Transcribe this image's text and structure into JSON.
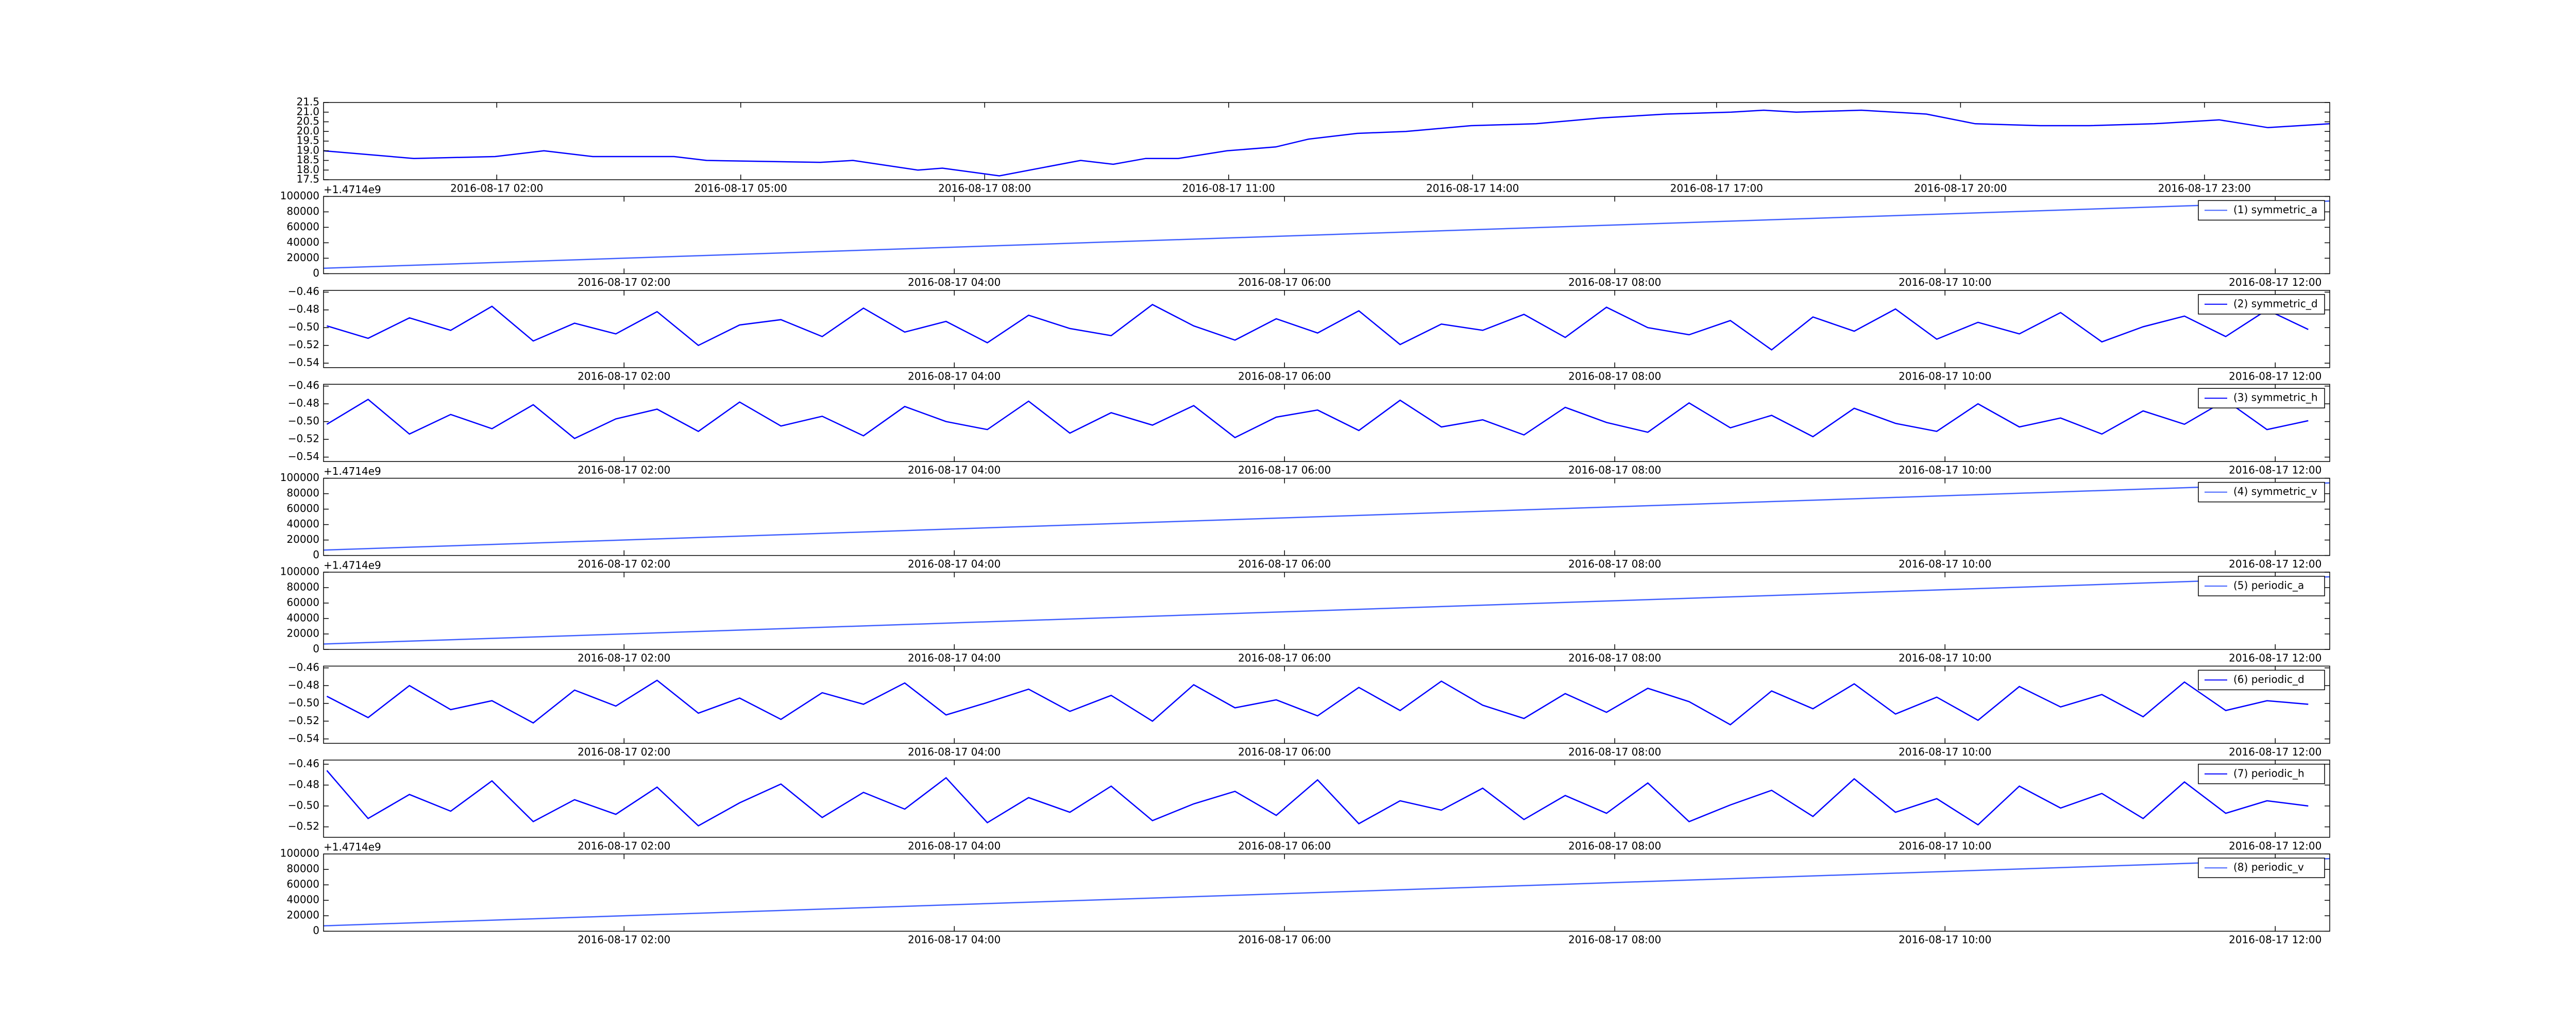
{
  "chart_data": [
    {
      "type": "line",
      "xlim": [
        -0.13,
        24.54
      ],
      "ylim": [
        17.5,
        21.5
      ],
      "xticks": [
        {
          "value": 2,
          "label": "2016-08-17 02:00"
        },
        {
          "value": 5,
          "label": "2016-08-17 05:00"
        },
        {
          "value": 8,
          "label": "2016-08-17 08:00"
        },
        {
          "value": 11,
          "label": "2016-08-17 11:00"
        },
        {
          "value": 14,
          "label": "2016-08-17 14:00"
        },
        {
          "value": 17,
          "label": "2016-08-17 17:00"
        },
        {
          "value": 20,
          "label": "2016-08-17 20:00"
        },
        {
          "value": 23,
          "label": "2016-08-17 23:00"
        }
      ],
      "yticks": [
        17.5,
        {
          "value": 18,
          "label": "18.0"
        },
        18.5,
        {
          "value": 19,
          "label": "19.0"
        },
        19.5,
        {
          "value": 20,
          "label": "20.0"
        },
        20.5,
        {
          "value": 21,
          "label": "21.0"
        },
        21.5
      ],
      "x": [
        -0.13,
        0.98,
        1.98,
        2.58,
        3.18,
        4.18,
        4.58,
        5.98,
        6.38,
        7.18,
        7.48,
        8.18,
        9.18,
        9.58,
        9.98,
        10.38,
        10.98,
        11.58,
        11.98,
        12.58,
        13.18,
        13.98,
        14.78,
        15.58,
        16.38,
        17.18,
        17.58,
        17.98,
        18.78,
        19.58,
        20.18,
        20.98,
        21.58,
        22.38,
        23.18,
        23.78,
        24.54
      ],
      "series": [
        {
          "color": "#0000ff",
          "values": [
            19.0,
            18.6,
            18.7,
            19.0,
            18.7,
            18.7,
            18.5,
            18.4,
            18.5,
            18.0,
            18.1,
            17.7,
            18.5,
            18.3,
            18.6,
            18.6,
            19.0,
            19.2,
            19.6,
            19.9,
            20.0,
            20.3,
            20.4,
            20.7,
            20.9,
            21.0,
            21.1,
            21.0,
            21.1,
            20.9,
            20.4,
            20.3,
            20.3,
            20.4,
            20.6,
            20.2,
            20.4
          ]
        }
      ]
    },
    {
      "type": "line",
      "xlim": [
        0.18,
        12.33
      ],
      "ylim": [
        0,
        100000
      ],
      "offset_text": "+1.4714e9",
      "legend": "upper right",
      "xticks": [
        {
          "value": 2,
          "label": "2016-08-17 02:00"
        },
        {
          "value": 4,
          "label": "2016-08-17 04:00"
        },
        {
          "value": 6,
          "label": "2016-08-17 06:00"
        },
        {
          "value": 8,
          "label": "2016-08-17 08:00"
        },
        {
          "value": 10,
          "label": "2016-08-17 10:00"
        },
        {
          "value": 12,
          "label": "2016-08-17 12:00"
        }
      ],
      "yticks": [
        0,
        20000,
        40000,
        60000,
        80000,
        100000
      ],
      "x": [
        0.18,
        12.33
      ],
      "series": [
        {
          "name": "(1) symmetric_a",
          "color": "#4060ff",
          "values": [
            7000,
            94000
          ]
        }
      ]
    },
    {
      "type": "line",
      "xlim": [
        0.18,
        12.33
      ],
      "ylim": [
        -0.545,
        -0.458
      ],
      "legend": "upper right",
      "xticks": [
        {
          "value": 2,
          "label": "2016-08-17 02:00"
        },
        {
          "value": 4,
          "label": "2016-08-17 04:00"
        },
        {
          "value": 6,
          "label": "2016-08-17 06:00"
        },
        {
          "value": 8,
          "label": "2016-08-17 08:00"
        },
        {
          "value": 10,
          "label": "2016-08-17 10:00"
        },
        {
          "value": 12,
          "label": "2016-08-17 12:00"
        }
      ],
      "yticks": [
        {
          "value": -0.54,
          "label": "−0.54"
        },
        {
          "value": -0.52,
          "label": "−0.52"
        },
        {
          "value": -0.5,
          "label": "−0.50"
        },
        {
          "value": -0.48,
          "label": "−0.48"
        },
        {
          "value": -0.46,
          "label": "−0.46"
        }
      ],
      "x": [
        0.2,
        0.45,
        0.7,
        0.95,
        1.2,
        1.45,
        1.7,
        1.95,
        2.2,
        2.45,
        2.7,
        2.95,
        3.2,
        3.45,
        3.7,
        3.95,
        4.2,
        4.45,
        4.7,
        4.95,
        5.2,
        5.45,
        5.7,
        5.95,
        6.2,
        6.45,
        6.7,
        6.95,
        7.2,
        7.45,
        7.7,
        7.95,
        8.2,
        8.45,
        8.7,
        8.95,
        9.2,
        9.45,
        9.7,
        9.95,
        10.2,
        10.45,
        10.7,
        10.95,
        11.2,
        11.45,
        11.7,
        11.95,
        12.2
      ],
      "series": [
        {
          "name": "(2) symmetric_d",
          "color": "#0000ff",
          "values": [
            -0.498,
            -0.512,
            -0.489,
            -0.503,
            -0.476,
            -0.515,
            -0.495,
            -0.507,
            -0.482,
            -0.52,
            -0.497,
            -0.491,
            -0.51,
            -0.478,
            -0.505,
            -0.493,
            -0.517,
            -0.486,
            -0.501,
            -0.509,
            -0.474,
            -0.498,
            -0.514,
            -0.49,
            -0.506,
            -0.481,
            -0.519,
            -0.496,
            -0.503,
            -0.485,
            -0.511,
            -0.477,
            -0.5,
            -0.508,
            -0.492,
            -0.525,
            -0.488,
            -0.504,
            -0.479,
            -0.513,
            -0.494,
            -0.507,
            -0.483,
            -0.516,
            -0.499,
            -0.487,
            -0.51,
            -0.48,
            -0.502
          ]
        }
      ]
    },
    {
      "type": "line",
      "xlim": [
        0.18,
        12.33
      ],
      "ylim": [
        -0.545,
        -0.458
      ],
      "legend": "upper right",
      "xticks": [
        {
          "value": 2,
          "label": "2016-08-17 02:00"
        },
        {
          "value": 4,
          "label": "2016-08-17 04:00"
        },
        {
          "value": 6,
          "label": "2016-08-17 06:00"
        },
        {
          "value": 8,
          "label": "2016-08-17 08:00"
        },
        {
          "value": 10,
          "label": "2016-08-17 10:00"
        },
        {
          "value": 12,
          "label": "2016-08-17 12:00"
        }
      ],
      "yticks": [
        {
          "value": -0.54,
          "label": "−0.54"
        },
        {
          "value": -0.52,
          "label": "−0.52"
        },
        {
          "value": -0.5,
          "label": "−0.50"
        },
        {
          "value": -0.48,
          "label": "−0.48"
        },
        {
          "value": -0.46,
          "label": "−0.46"
        }
      ],
      "x": [
        0.2,
        0.45,
        0.7,
        0.95,
        1.2,
        1.45,
        1.7,
        1.95,
        2.2,
        2.45,
        2.7,
        2.95,
        3.2,
        3.45,
        3.7,
        3.95,
        4.2,
        4.45,
        4.7,
        4.95,
        5.2,
        5.45,
        5.7,
        5.95,
        6.2,
        6.45,
        6.7,
        6.95,
        7.2,
        7.45,
        7.7,
        7.95,
        8.2,
        8.45,
        8.7,
        8.95,
        9.2,
        9.45,
        9.7,
        9.95,
        10.2,
        10.45,
        10.7,
        10.95,
        11.2,
        11.45,
        11.7,
        11.95,
        12.2
      ],
      "series": [
        {
          "name": "(3) symmetric_h",
          "color": "#0000ff",
          "values": [
            -0.503,
            -0.475,
            -0.514,
            -0.492,
            -0.508,
            -0.481,
            -0.519,
            -0.497,
            -0.486,
            -0.511,
            -0.478,
            -0.505,
            -0.494,
            -0.516,
            -0.483,
            -0.5,
            -0.509,
            -0.477,
            -0.513,
            -0.49,
            -0.504,
            -0.482,
            -0.518,
            -0.495,
            -0.487,
            -0.51,
            -0.476,
            -0.506,
            -0.498,
            -0.515,
            -0.484,
            -0.501,
            -0.512,
            -0.479,
            -0.507,
            -0.493,
            -0.517,
            -0.485,
            -0.502,
            -0.511,
            -0.48,
            -0.506,
            -0.496,
            -0.514,
            -0.488,
            -0.503,
            -0.476,
            -0.509,
            -0.499
          ]
        }
      ]
    },
    {
      "type": "line",
      "xlim": [
        0.18,
        12.33
      ],
      "ylim": [
        0,
        100000
      ],
      "offset_text": "+1.4714e9",
      "legend": "upper right",
      "xticks": [
        {
          "value": 2,
          "label": "2016-08-17 02:00"
        },
        {
          "value": 4,
          "label": "2016-08-17 04:00"
        },
        {
          "value": 6,
          "label": "2016-08-17 06:00"
        },
        {
          "value": 8,
          "label": "2016-08-17 08:00"
        },
        {
          "value": 10,
          "label": "2016-08-17 10:00"
        },
        {
          "value": 12,
          "label": "2016-08-17 12:00"
        }
      ],
      "yticks": [
        0,
        20000,
        40000,
        60000,
        80000,
        100000
      ],
      "x": [
        0.18,
        12.33
      ],
      "series": [
        {
          "name": "(4) symmetric_v",
          "color": "#4060ff",
          "values": [
            7000,
            94000
          ]
        }
      ]
    },
    {
      "type": "line",
      "xlim": [
        0.18,
        12.33
      ],
      "ylim": [
        0,
        100000
      ],
      "offset_text": "+1.4714e9",
      "legend": "upper right",
      "xticks": [
        {
          "value": 2,
          "label": "2016-08-17 02:00"
        },
        {
          "value": 4,
          "label": "2016-08-17 04:00"
        },
        {
          "value": 6,
          "label": "2016-08-17 06:00"
        },
        {
          "value": 8,
          "label": "2016-08-17 08:00"
        },
        {
          "value": 10,
          "label": "2016-08-17 10:00"
        },
        {
          "value": 12,
          "label": "2016-08-17 12:00"
        }
      ],
      "yticks": [
        0,
        20000,
        40000,
        60000,
        80000,
        100000
      ],
      "x": [
        0.18,
        12.33
      ],
      "series": [
        {
          "name": "(5) periodic_a",
          "color": "#4060ff",
          "values": [
            7000,
            94000
          ]
        }
      ]
    },
    {
      "type": "line",
      "xlim": [
        0.18,
        12.33
      ],
      "ylim": [
        -0.545,
        -0.458
      ],
      "legend": "upper right",
      "xticks": [
        {
          "value": 2,
          "label": "2016-08-17 02:00"
        },
        {
          "value": 4,
          "label": "2016-08-17 04:00"
        },
        {
          "value": 6,
          "label": "2016-08-17 06:00"
        },
        {
          "value": 8,
          "label": "2016-08-17 08:00"
        },
        {
          "value": 10,
          "label": "2016-08-17 10:00"
        },
        {
          "value": 12,
          "label": "2016-08-17 12:00"
        }
      ],
      "yticks": [
        {
          "value": -0.54,
          "label": "−0.54"
        },
        {
          "value": -0.52,
          "label": "−0.52"
        },
        {
          "value": -0.5,
          "label": "−0.50"
        },
        {
          "value": -0.48,
          "label": "−0.48"
        },
        {
          "value": -0.46,
          "label": "−0.46"
        }
      ],
      "x": [
        0.2,
        0.45,
        0.7,
        0.95,
        1.2,
        1.45,
        1.7,
        1.95,
        2.2,
        2.45,
        2.7,
        2.95,
        3.2,
        3.45,
        3.7,
        3.95,
        4.2,
        4.45,
        4.7,
        4.95,
        5.2,
        5.45,
        5.7,
        5.95,
        6.2,
        6.45,
        6.7,
        6.95,
        7.2,
        7.45,
        7.7,
        7.95,
        8.2,
        8.45,
        8.7,
        8.95,
        9.2,
        9.45,
        9.7,
        9.95,
        10.2,
        10.45,
        10.7,
        10.95,
        11.2,
        11.45,
        11.7,
        11.95,
        12.2
      ],
      "series": [
        {
          "name": "(6) periodic_d",
          "color": "#0000ff",
          "values": [
            -0.492,
            -0.516,
            -0.48,
            -0.507,
            -0.497,
            -0.522,
            -0.485,
            -0.503,
            -0.474,
            -0.511,
            -0.494,
            -0.518,
            -0.488,
            -0.501,
            -0.477,
            -0.513,
            -0.499,
            -0.484,
            -0.509,
            -0.491,
            -0.52,
            -0.479,
            -0.505,
            -0.496,
            -0.514,
            -0.482,
            -0.508,
            -0.475,
            -0.502,
            -0.517,
            -0.489,
            -0.51,
            -0.483,
            -0.498,
            -0.524,
            -0.486,
            -0.506,
            -0.478,
            -0.512,
            -0.493,
            -0.519,
            -0.481,
            -0.504,
            -0.49,
            -0.515,
            -0.476,
            -0.508,
            -0.497,
            -0.501
          ]
        }
      ]
    },
    {
      "type": "line",
      "xlim": [
        0.18,
        12.33
      ],
      "ylim": [
        -0.53,
        -0.456
      ],
      "legend": "upper right",
      "xticks": [
        {
          "value": 2,
          "label": "2016-08-17 02:00"
        },
        {
          "value": 4,
          "label": "2016-08-17 04:00"
        },
        {
          "value": 6,
          "label": "2016-08-17 06:00"
        },
        {
          "value": 8,
          "label": "2016-08-17 08:00"
        },
        {
          "value": 10,
          "label": "2016-08-17 10:00"
        },
        {
          "value": 12,
          "label": "2016-08-17 12:00"
        }
      ],
      "yticks": [
        {
          "value": -0.52,
          "label": "−0.52"
        },
        {
          "value": -0.5,
          "label": "−0.50"
        },
        {
          "value": -0.48,
          "label": "−0.48"
        },
        {
          "value": -0.46,
          "label": "−0.46"
        }
      ],
      "x": [
        0.2,
        0.45,
        0.7,
        0.95,
        1.2,
        1.45,
        1.7,
        1.95,
        2.2,
        2.45,
        2.7,
        2.95,
        3.2,
        3.45,
        3.7,
        3.95,
        4.2,
        4.45,
        4.7,
        4.95,
        5.2,
        5.45,
        5.7,
        5.95,
        6.2,
        6.45,
        6.7,
        6.95,
        7.2,
        7.45,
        7.7,
        7.95,
        8.2,
        8.45,
        8.7,
        8.95,
        9.2,
        9.45,
        9.7,
        9.95,
        10.2,
        10.45,
        10.7,
        10.95,
        11.2,
        11.45,
        11.7,
        11.95,
        12.2
      ],
      "series": [
        {
          "name": "(7) periodic_h",
          "color": "#0000ff",
          "values": [
            -0.466,
            -0.512,
            -0.489,
            -0.505,
            -0.476,
            -0.515,
            -0.494,
            -0.508,
            -0.482,
            -0.519,
            -0.497,
            -0.479,
            -0.511,
            -0.487,
            -0.503,
            -0.473,
            -0.516,
            -0.492,
            -0.506,
            -0.481,
            -0.514,
            -0.498,
            -0.486,
            -0.509,
            -0.475,
            -0.517,
            -0.495,
            -0.504,
            -0.483,
            -0.513,
            -0.49,
            -0.507,
            -0.478,
            -0.515,
            -0.499,
            -0.485,
            -0.51,
            -0.474,
            -0.506,
            -0.493,
            -0.518,
            -0.481,
            -0.502,
            -0.488,
            -0.512,
            -0.477,
            -0.507,
            -0.495,
            -0.5
          ]
        }
      ]
    },
    {
      "type": "line",
      "xlim": [
        0.18,
        12.33
      ],
      "ylim": [
        0,
        100000
      ],
      "offset_text": "+1.4714e9",
      "legend": "upper right",
      "xticks": [
        {
          "value": 2,
          "label": "2016-08-17 02:00"
        },
        {
          "value": 4,
          "label": "2016-08-17 04:00"
        },
        {
          "value": 6,
          "label": "2016-08-17 06:00"
        },
        {
          "value": 8,
          "label": "2016-08-17 08:00"
        },
        {
          "value": 10,
          "label": "2016-08-17 10:00"
        },
        {
          "value": 12,
          "label": "2016-08-17 12:00"
        }
      ],
      "yticks": [
        0,
        20000,
        40000,
        60000,
        80000,
        100000
      ],
      "x": [
        0.18,
        12.33
      ],
      "series": [
        {
          "name": "(8) periodic_v",
          "color": "#4060ff",
          "values": [
            7000,
            94000
          ]
        }
      ]
    }
  ]
}
